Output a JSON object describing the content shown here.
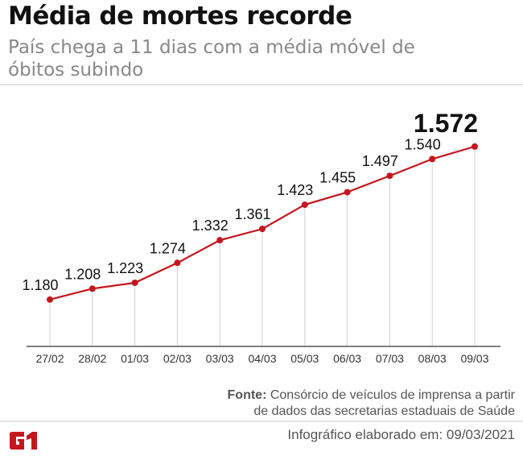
{
  "header": {
    "title": "Média de mortes recorde",
    "subtitle": "País chega a 11 dias com a média móvel de óbitos subindo"
  },
  "chart_data": {
    "type": "line",
    "categories": [
      "27/02",
      "28/02",
      "01/03",
      "02/03",
      "03/03",
      "04/03",
      "05/03",
      "06/03",
      "07/03",
      "08/03",
      "09/03"
    ],
    "values": [
      1180,
      1208,
      1223,
      1274,
      1332,
      1361,
      1423,
      1455,
      1497,
      1540,
      1572
    ],
    "data_labels": [
      "1.180",
      "1.208",
      "1.223",
      "1.274",
      "1.332",
      "1.361",
      "1.423",
      "1.455",
      "1.497",
      "1.540",
      "1.572"
    ],
    "title": "",
    "xlabel": "",
    "ylabel": "",
    "ylim": [
      1060,
      1580
    ],
    "grid": "vertical drop lines",
    "line_color": "#c4161c"
  },
  "footer": {
    "source_label": "Fonte:",
    "source_text": "Consórcio de veículos de imprensa a partir de dados das secretarias estaduais de Saúde",
    "credit": "Infográfico elaborado em: 09/03/2021",
    "logo_text": "G1",
    "logo_color": "#c4161c"
  }
}
